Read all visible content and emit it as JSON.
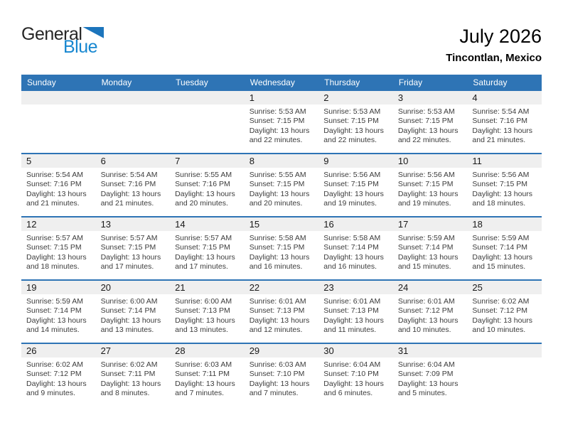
{
  "logo": {
    "word1": "General",
    "word2": "Blue"
  },
  "header": {
    "title": "July 2026",
    "location": "Tincontlan, Mexico"
  },
  "colors": {
    "header_bg": "#2E74B5",
    "separator": "#2E74B5",
    "row_band": "#EFEFEF",
    "logo_blue": "#1787D0",
    "logo_triangle": "#1C75BC"
  },
  "weekdays": [
    "Sunday",
    "Monday",
    "Tuesday",
    "Wednesday",
    "Thursday",
    "Friday",
    "Saturday"
  ],
  "calendar": {
    "weeks": [
      {
        "cells": [
          {},
          {},
          {},
          {
            "day": "1",
            "sunrise": "Sunrise: 5:53 AM",
            "sunset": "Sunset: 7:15 PM",
            "daylight1": "Daylight: 13 hours",
            "daylight2": "and 22 minutes."
          },
          {
            "day": "2",
            "sunrise": "Sunrise: 5:53 AM",
            "sunset": "Sunset: 7:15 PM",
            "daylight1": "Daylight: 13 hours",
            "daylight2": "and 22 minutes."
          },
          {
            "day": "3",
            "sunrise": "Sunrise: 5:53 AM",
            "sunset": "Sunset: 7:15 PM",
            "daylight1": "Daylight: 13 hours",
            "daylight2": "and 22 minutes."
          },
          {
            "day": "4",
            "sunrise": "Sunrise: 5:54 AM",
            "sunset": "Sunset: 7:16 PM",
            "daylight1": "Daylight: 13 hours",
            "daylight2": "and 21 minutes."
          }
        ]
      },
      {
        "cells": [
          {
            "day": "5",
            "sunrise": "Sunrise: 5:54 AM",
            "sunset": "Sunset: 7:16 PM",
            "daylight1": "Daylight: 13 hours",
            "daylight2": "and 21 minutes."
          },
          {
            "day": "6",
            "sunrise": "Sunrise: 5:54 AM",
            "sunset": "Sunset: 7:16 PM",
            "daylight1": "Daylight: 13 hours",
            "daylight2": "and 21 minutes."
          },
          {
            "day": "7",
            "sunrise": "Sunrise: 5:55 AM",
            "sunset": "Sunset: 7:16 PM",
            "daylight1": "Daylight: 13 hours",
            "daylight2": "and 20 minutes."
          },
          {
            "day": "8",
            "sunrise": "Sunrise: 5:55 AM",
            "sunset": "Sunset: 7:15 PM",
            "daylight1": "Daylight: 13 hours",
            "daylight2": "and 20 minutes."
          },
          {
            "day": "9",
            "sunrise": "Sunrise: 5:56 AM",
            "sunset": "Sunset: 7:15 PM",
            "daylight1": "Daylight: 13 hours",
            "daylight2": "and 19 minutes."
          },
          {
            "day": "10",
            "sunrise": "Sunrise: 5:56 AM",
            "sunset": "Sunset: 7:15 PM",
            "daylight1": "Daylight: 13 hours",
            "daylight2": "and 19 minutes."
          },
          {
            "day": "11",
            "sunrise": "Sunrise: 5:56 AM",
            "sunset": "Sunset: 7:15 PM",
            "daylight1": "Daylight: 13 hours",
            "daylight2": "and 18 minutes."
          }
        ]
      },
      {
        "cells": [
          {
            "day": "12",
            "sunrise": "Sunrise: 5:57 AM",
            "sunset": "Sunset: 7:15 PM",
            "daylight1": "Daylight: 13 hours",
            "daylight2": "and 18 minutes."
          },
          {
            "day": "13",
            "sunrise": "Sunrise: 5:57 AM",
            "sunset": "Sunset: 7:15 PM",
            "daylight1": "Daylight: 13 hours",
            "daylight2": "and 17 minutes."
          },
          {
            "day": "14",
            "sunrise": "Sunrise: 5:57 AM",
            "sunset": "Sunset: 7:15 PM",
            "daylight1": "Daylight: 13 hours",
            "daylight2": "and 17 minutes."
          },
          {
            "day": "15",
            "sunrise": "Sunrise: 5:58 AM",
            "sunset": "Sunset: 7:15 PM",
            "daylight1": "Daylight: 13 hours",
            "daylight2": "and 16 minutes."
          },
          {
            "day": "16",
            "sunrise": "Sunrise: 5:58 AM",
            "sunset": "Sunset: 7:14 PM",
            "daylight1": "Daylight: 13 hours",
            "daylight2": "and 16 minutes."
          },
          {
            "day": "17",
            "sunrise": "Sunrise: 5:59 AM",
            "sunset": "Sunset: 7:14 PM",
            "daylight1": "Daylight: 13 hours",
            "daylight2": "and 15 minutes."
          },
          {
            "day": "18",
            "sunrise": "Sunrise: 5:59 AM",
            "sunset": "Sunset: 7:14 PM",
            "daylight1": "Daylight: 13 hours",
            "daylight2": "and 15 minutes."
          }
        ]
      },
      {
        "cells": [
          {
            "day": "19",
            "sunrise": "Sunrise: 5:59 AM",
            "sunset": "Sunset: 7:14 PM",
            "daylight1": "Daylight: 13 hours",
            "daylight2": "and 14 minutes."
          },
          {
            "day": "20",
            "sunrise": "Sunrise: 6:00 AM",
            "sunset": "Sunset: 7:14 PM",
            "daylight1": "Daylight: 13 hours",
            "daylight2": "and 13 minutes."
          },
          {
            "day": "21",
            "sunrise": "Sunrise: 6:00 AM",
            "sunset": "Sunset: 7:13 PM",
            "daylight1": "Daylight: 13 hours",
            "daylight2": "and 13 minutes."
          },
          {
            "day": "22",
            "sunrise": "Sunrise: 6:01 AM",
            "sunset": "Sunset: 7:13 PM",
            "daylight1": "Daylight: 13 hours",
            "daylight2": "and 12 minutes."
          },
          {
            "day": "23",
            "sunrise": "Sunrise: 6:01 AM",
            "sunset": "Sunset: 7:13 PM",
            "daylight1": "Daylight: 13 hours",
            "daylight2": "and 11 minutes."
          },
          {
            "day": "24",
            "sunrise": "Sunrise: 6:01 AM",
            "sunset": "Sunset: 7:12 PM",
            "daylight1": "Daylight: 13 hours",
            "daylight2": "and 10 minutes."
          },
          {
            "day": "25",
            "sunrise": "Sunrise: 6:02 AM",
            "sunset": "Sunset: 7:12 PM",
            "daylight1": "Daylight: 13 hours",
            "daylight2": "and 10 minutes."
          }
        ]
      },
      {
        "cells": [
          {
            "day": "26",
            "sunrise": "Sunrise: 6:02 AM",
            "sunset": "Sunset: 7:12 PM",
            "daylight1": "Daylight: 13 hours",
            "daylight2": "and 9 minutes."
          },
          {
            "day": "27",
            "sunrise": "Sunrise: 6:02 AM",
            "sunset": "Sunset: 7:11 PM",
            "daylight1": "Daylight: 13 hours",
            "daylight2": "and 8 minutes."
          },
          {
            "day": "28",
            "sunrise": "Sunrise: 6:03 AM",
            "sunset": "Sunset: 7:11 PM",
            "daylight1": "Daylight: 13 hours",
            "daylight2": "and 7 minutes."
          },
          {
            "day": "29",
            "sunrise": "Sunrise: 6:03 AM",
            "sunset": "Sunset: 7:10 PM",
            "daylight1": "Daylight: 13 hours",
            "daylight2": "and 7 minutes."
          },
          {
            "day": "30",
            "sunrise": "Sunrise: 6:04 AM",
            "sunset": "Sunset: 7:10 PM",
            "daylight1": "Daylight: 13 hours",
            "daylight2": "and 6 minutes."
          },
          {
            "day": "31",
            "sunrise": "Sunrise: 6:04 AM",
            "sunset": "Sunset: 7:09 PM",
            "daylight1": "Daylight: 13 hours",
            "daylight2": "and 5 minutes."
          },
          {}
        ]
      }
    ]
  }
}
